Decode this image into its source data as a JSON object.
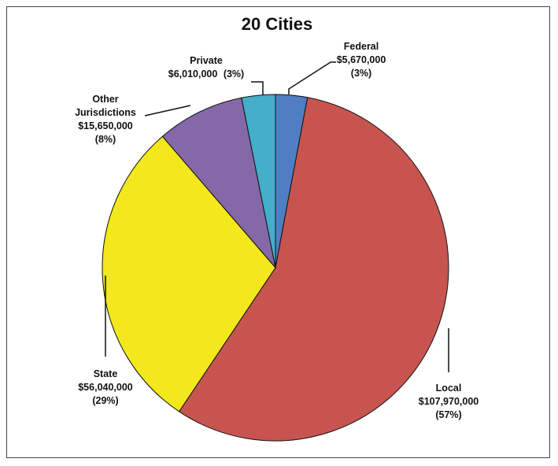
{
  "chart_data": {
    "type": "pie",
    "title": "20 Cities",
    "slices": [
      {
        "name": "Federal",
        "value_label": "$5,670,000",
        "pct_label": "(3%)",
        "value": 5670000,
        "color": "#4f7fc2"
      },
      {
        "name": "Local",
        "value_label": "$107,970,000",
        "pct_label": "(57%)",
        "value": 107970000,
        "color": "#c85450"
      },
      {
        "name": "State",
        "value_label": "$56,040,000",
        "pct_label": "(29%)",
        "value": 56040000,
        "color": "#f2e81b"
      },
      {
        "name_lines": [
          "Other",
          "Jurisdictions"
        ],
        "value_label": "$15,650,000",
        "pct_label": "(8%)",
        "value": 15650000,
        "color": "#8568a8"
      },
      {
        "name": "Private",
        "value_label": "$6,010,000",
        "pct_label": "(3%)",
        "value": 6010000,
        "color": "#44aecb"
      }
    ]
  }
}
